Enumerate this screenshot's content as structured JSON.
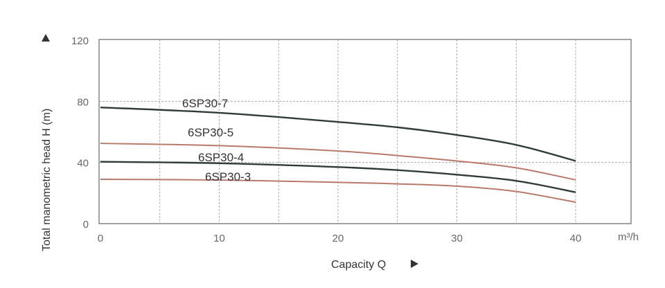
{
  "chart_data": {
    "type": "line",
    "title": "",
    "xlabel": "Capacity Q",
    "xunit": "m³/h",
    "ylabel": "Total manometric head H (m)",
    "xlim": [
      0,
      44.7
    ],
    "ylim": [
      0,
      120
    ],
    "x_ticks": [
      0,
      10,
      20,
      30,
      40
    ],
    "y_ticks": [
      0,
      40,
      80,
      120
    ],
    "grid": true,
    "grid_x_step": 5,
    "grid_y_step": 40,
    "x": [
      0,
      10,
      20,
      25,
      30,
      35,
      40
    ],
    "series": [
      {
        "name": "6SP30-7",
        "color": "#2f3b37",
        "values": [
          76,
          72.5,
          66.5,
          63,
          58,
          51.5,
          41
        ]
      },
      {
        "name": "6SP30-5",
        "color": "#b8786a",
        "values": [
          52.5,
          51,
          47.5,
          44.5,
          41,
          36.5,
          28.6
        ]
      },
      {
        "name": "6SP30-4",
        "color": "#2f3b37",
        "values": [
          40.5,
          39.5,
          37,
          35,
          32,
          28,
          20.5
        ]
      },
      {
        "name": "6SP30-3",
        "color": "#b8786a",
        "values": [
          29,
          28.5,
          27,
          26,
          24.5,
          21,
          14
        ]
      }
    ]
  }
}
